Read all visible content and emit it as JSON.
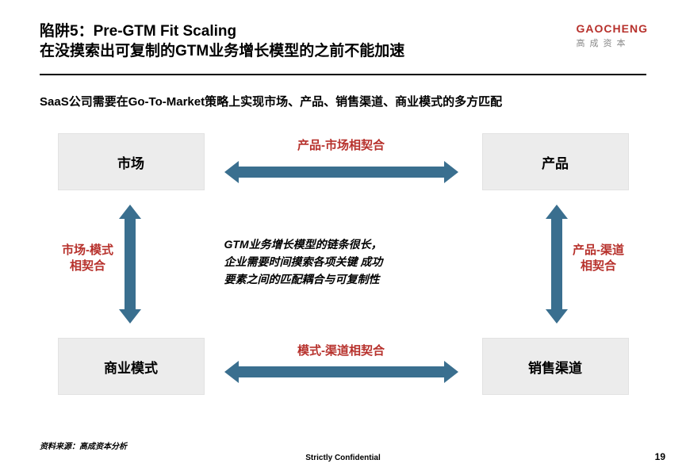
{
  "header": {
    "title_line1": "陷阱5：Pre-GTM Fit Scaling",
    "title_line2": "在没摸索出可复制的GTM业务增长模型的之前不能加速",
    "logo_main": "GAOCHENG",
    "logo_sub": "高成资本"
  },
  "subtitle": "SaaS公司需要在Go-To-Market策略上实现市场、产品、销售渠道、商业模式的多方匹配",
  "diagram": {
    "type": "flowchart",
    "box_bg": "#ececec",
    "box_border": "#e2e2e2",
    "arrow_color": "#3a6f8f",
    "label_color": "#b7312c",
    "nodes": {
      "tl": "市场",
      "tr": "产品",
      "bl": "商业模式",
      "br": "销售渠道"
    },
    "edge_labels": {
      "top": "产品-市场相契合",
      "bottom": "模式-渠道相契合",
      "left_l1": "市场-模式",
      "left_l2": "相契合",
      "right_l1": "产品-渠道",
      "right_l2": "相契合"
    },
    "center_l1": "GTM业务增长模型的链条很长，",
    "center_l2": "企业需要时间摸索各项关键 成功",
    "center_l3": "要素之间的匹配耦合与可复制性"
  },
  "footer": {
    "source": "资料来源：高成资本分析",
    "confidential": "Strictly Confidential",
    "page": "19"
  }
}
